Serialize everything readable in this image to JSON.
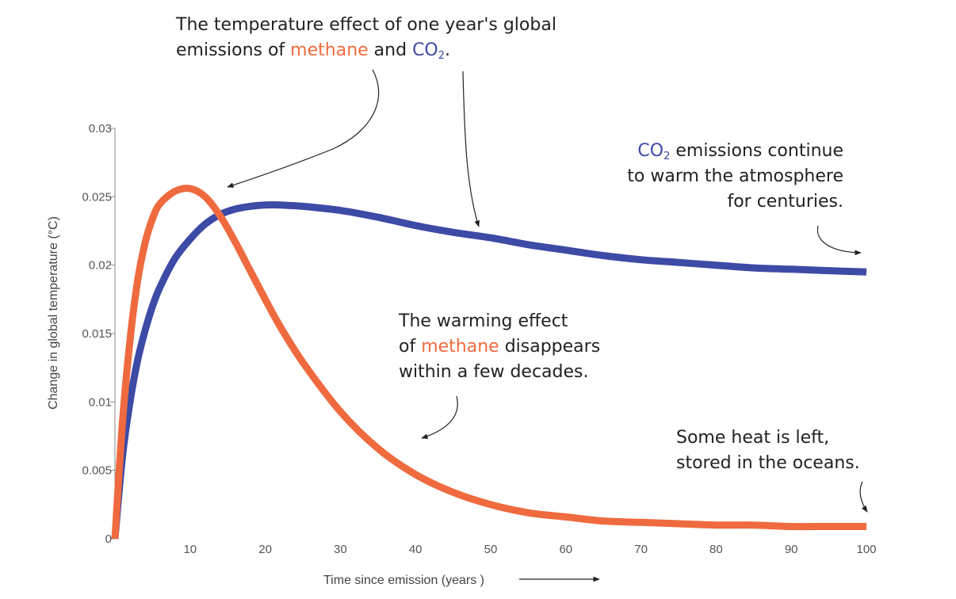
{
  "chart_data": {
    "type": "line",
    "title": "",
    "xlabel": "Time since emission (years )",
    "ylabel": "Change in global temperature (°C)",
    "xlim": [
      0,
      100
    ],
    "ylim": [
      0,
      0.03
    ],
    "x_ticks": [
      "10",
      "20",
      "30",
      "40",
      "50",
      "60",
      "70",
      "80",
      "90",
      "100"
    ],
    "y_ticks": [
      "0",
      "0.005",
      "0.01",
      "0.015",
      "0.02",
      "0.025",
      "0.03"
    ],
    "x": [
      0,
      1,
      2,
      3,
      4,
      5,
      6,
      8,
      10,
      12,
      14,
      16,
      18,
      20,
      22,
      25,
      30,
      35,
      40,
      45,
      50,
      55,
      60,
      65,
      70,
      75,
      80,
      85,
      90,
      95,
      100
    ],
    "series": [
      {
        "name": "methane",
        "color": "#ef6a3e",
        "values": [
          0,
          0.0085,
          0.0145,
          0.0188,
          0.0216,
          0.0234,
          0.0245,
          0.0254,
          0.0256,
          0.025,
          0.0236,
          0.0217,
          0.0196,
          0.0175,
          0.0155,
          0.0129,
          0.0093,
          0.0066,
          0.0047,
          0.0034,
          0.0025,
          0.0019,
          0.0016,
          0.0013,
          0.0012,
          0.0011,
          0.001,
          0.001,
          0.0009,
          0.0009,
          0.0009
        ]
      },
      {
        "name": "CO2",
        "color": "#3d4aa6",
        "values": [
          0,
          0.006,
          0.01,
          0.013,
          0.0152,
          0.017,
          0.0184,
          0.0205,
          0.0219,
          0.023,
          0.0237,
          0.0241,
          0.0243,
          0.0244,
          0.0244,
          0.0243,
          0.024,
          0.0235,
          0.0229,
          0.0224,
          0.022,
          0.0215,
          0.0211,
          0.0207,
          0.0204,
          0.0202,
          0.02,
          0.0198,
          0.0197,
          0.0196,
          0.0195
        ]
      }
    ],
    "annotations": {
      "top": {
        "line1": "The temperature effect of one year's global",
        "line2_pre": "emissions of ",
        "line2_methane": "methane",
        "line2_mid": " and ",
        "line2_co": "CO",
        "line2_sub": "2",
        "line2_post": "."
      },
      "co2_note": {
        "co": "CO",
        "sub": "2",
        "line1_rest": " emissions continue",
        "line2": "to warm the atmosphere",
        "line3": "for centuries."
      },
      "methane_note": {
        "line1": "The warming effect",
        "line2_pre": "of ",
        "line2_methane": "methane",
        "line2_post": " disappears",
        "line3": "within a few decades."
      },
      "heat_note": {
        "line1": "Some heat is left,",
        "line2": "stored in the oceans."
      }
    }
  }
}
